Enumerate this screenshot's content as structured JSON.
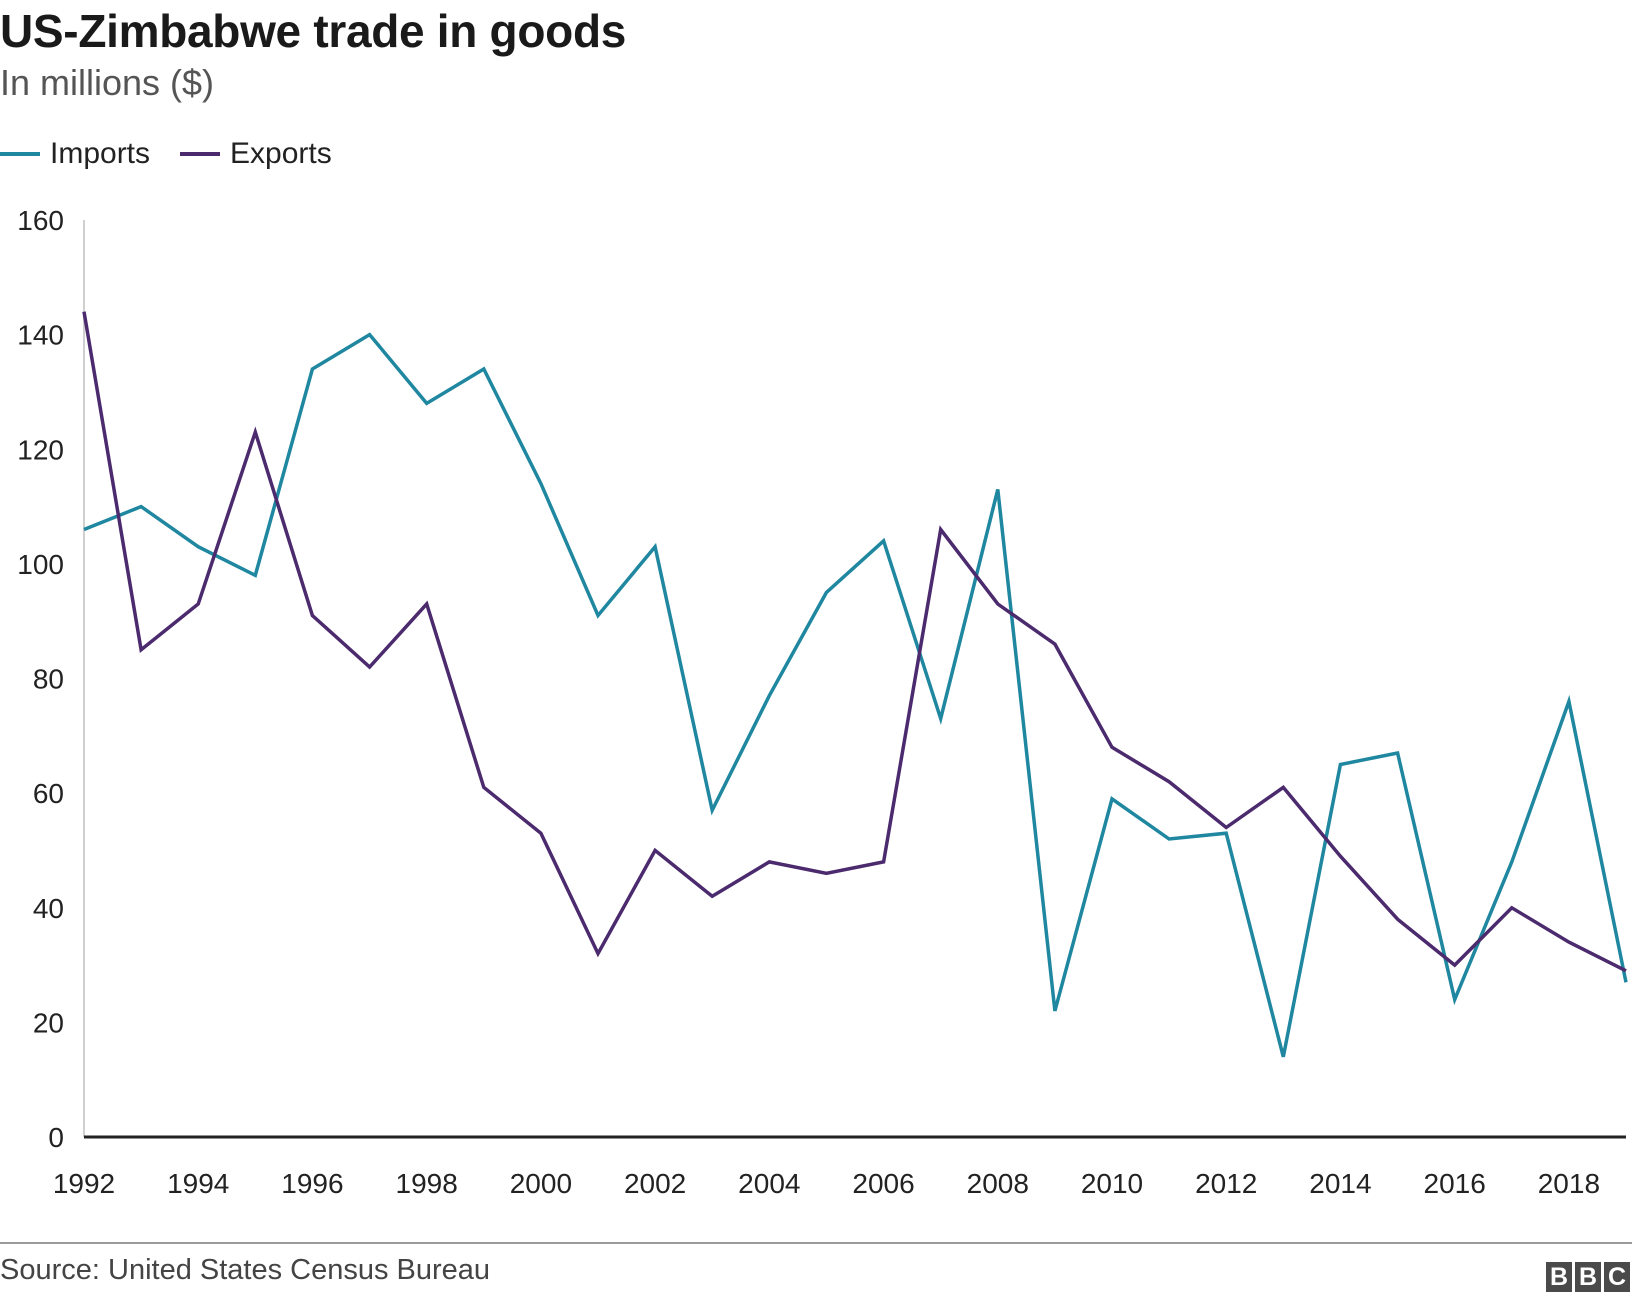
{
  "chart_data": {
    "type": "line",
    "title": "US-Zimbabwe trade in goods",
    "subtitle": "In millions ($)",
    "xlabel": "",
    "ylabel": "",
    "x": [
      1992,
      1993,
      1994,
      1995,
      1996,
      1997,
      1998,
      1999,
      2000,
      2001,
      2002,
      2003,
      2004,
      2005,
      2006,
      2007,
      2008,
      2009,
      2010,
      2011,
      2012,
      2013,
      2014,
      2015,
      2016,
      2017,
      2018,
      2019
    ],
    "x_tick_labels": [
      "1992",
      "1994",
      "1996",
      "1998",
      "2000",
      "2002",
      "2004",
      "2006",
      "2008",
      "2010",
      "2012",
      "2014",
      "2016",
      "2018"
    ],
    "y_tick_labels": [
      "0",
      "20",
      "40",
      "60",
      "80",
      "100",
      "120",
      "140",
      "160"
    ],
    "xlim": [
      1992,
      2019
    ],
    "ylim": [
      0,
      160
    ],
    "grid": false,
    "legend_position": "top-left",
    "series": [
      {
        "name": "Imports",
        "color": "#1f87a0",
        "values": [
          106,
          110,
          103,
          98,
          134,
          140,
          128,
          134,
          114,
          91,
          103,
          57,
          77,
          95,
          104,
          73,
          113,
          22,
          59,
          52,
          53,
          14,
          65,
          67,
          24,
          48,
          76,
          27
        ]
      },
      {
        "name": "Exports",
        "color": "#4b2a6e",
        "values": [
          144,
          85,
          93,
          123,
          91,
          82,
          93,
          61,
          53,
          32,
          50,
          42,
          48,
          46,
          48,
          106,
          93,
          86,
          68,
          62,
          54,
          61,
          49,
          38,
          30,
          40,
          34,
          29
        ]
      }
    ]
  },
  "footer": {
    "source": "Source: United States Census Bureau",
    "logo_letters": [
      "B",
      "B",
      "C"
    ]
  }
}
